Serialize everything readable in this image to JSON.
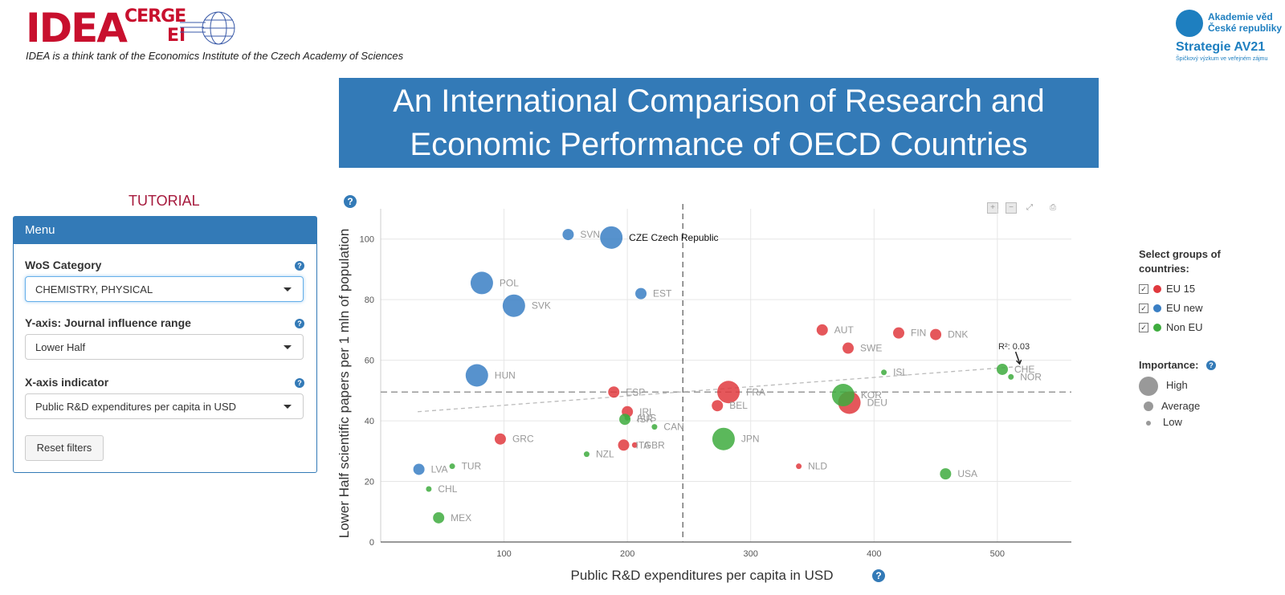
{
  "header": {
    "logo_main": "IDEA",
    "logo_cerge": "CERGE",
    "logo_ei": "EI",
    "tagline": "IDEA is a think tank of the Economics Institute of the Czech Academy of Sciences",
    "partner_line1": "Akademie věd",
    "partner_line2": "České republiky",
    "partner_name": "Strategie AV21",
    "partner_sub": "Špičkový výzkum ve veřejném zájmu"
  },
  "banner": {
    "title": "An International Comparison of Research and Economic Performance of OECD Countries"
  },
  "sidebar": {
    "tutorial_link": "TUTORIAL",
    "menu_title": "Menu",
    "wos_label": "WoS Category",
    "wos_value": "CHEMISTRY, PHYSICAL",
    "y_label": "Y-axis: Journal influence range",
    "y_value": "Lower Half",
    "x_label": "X-axis indicator",
    "x_value": "Public R&D expenditures per capita in USD",
    "reset_label": "Reset filters",
    "help_glyph": "?"
  },
  "toolbar": {
    "zoom_in": "+",
    "zoom_out": "−",
    "reset": "⤢",
    "export": "⎙"
  },
  "legend": {
    "groups_title": "Select groups of countries:",
    "groups": [
      {
        "label": "EU 15",
        "color": "#e0393e",
        "checked": "✓"
      },
      {
        "label": "EU new",
        "color": "#3a7fc4",
        "checked": "✓"
      },
      {
        "label": "Non EU",
        "color": "#3eac3e",
        "checked": "✓"
      }
    ],
    "importance_title": "Importance:",
    "importance": [
      "High",
      "Average",
      "Low"
    ]
  },
  "chart_data": {
    "type": "scatter",
    "xlabel": "Public R&D expenditures per capita in USD",
    "ylabel": "Lower Half scientific papers per 1 mln of population",
    "xlim": [
      0,
      560
    ],
    "ylim": [
      0,
      110
    ],
    "xticks": [
      100,
      200,
      300,
      400,
      500
    ],
    "yticks": [
      0,
      20,
      40,
      60,
      80,
      100
    ],
    "reference_x": 245,
    "reference_y": 49.5,
    "trend": {
      "x1": 30,
      "y1": 43,
      "x2": 520,
      "y2": 58,
      "label": "R²: 0.03"
    },
    "highlight_label": "CZE Czech Republic",
    "colors": {
      "EU 15": "#e0393e",
      "EU new": "#3a7fc4",
      "Non EU": "#3eac3e"
    },
    "points": [
      {
        "code": "SVN",
        "x": 152,
        "y": 101.5,
        "group": "EU new",
        "size": "Average"
      },
      {
        "code": "CZE",
        "x": 187,
        "y": 100.5,
        "group": "EU new",
        "size": "High"
      },
      {
        "code": "POL",
        "x": 82,
        "y": 85.5,
        "group": "EU new",
        "size": "High"
      },
      {
        "code": "SVK",
        "x": 108,
        "y": 78,
        "group": "EU new",
        "size": "High"
      },
      {
        "code": "EST",
        "x": 211,
        "y": 82,
        "group": "EU new",
        "size": "Average"
      },
      {
        "code": "HUN",
        "x": 78,
        "y": 55,
        "group": "EU new",
        "size": "High"
      },
      {
        "code": "LVA",
        "x": 31,
        "y": 24,
        "group": "EU new",
        "size": "Average"
      },
      {
        "code": "AUT",
        "x": 358,
        "y": 70,
        "group": "EU 15",
        "size": "Average"
      },
      {
        "code": "FIN",
        "x": 420,
        "y": 69,
        "group": "EU 15",
        "size": "Average"
      },
      {
        "code": "DNK",
        "x": 450,
        "y": 68.5,
        "group": "EU 15",
        "size": "Average"
      },
      {
        "code": "SWE",
        "x": 379,
        "y": 64,
        "group": "EU 15",
        "size": "Average"
      },
      {
        "code": "ESP",
        "x": 189,
        "y": 49.5,
        "group": "EU 15",
        "size": "Average"
      },
      {
        "code": "FRA",
        "x": 282,
        "y": 49.5,
        "group": "EU 15",
        "size": "High"
      },
      {
        "code": "DEU",
        "x": 380,
        "y": 46,
        "group": "EU 15",
        "size": "High"
      },
      {
        "code": "BEL",
        "x": 273,
        "y": 45,
        "group": "EU 15",
        "size": "Average"
      },
      {
        "code": "IRL",
        "x": 200,
        "y": 43,
        "group": "EU 15",
        "size": "Average"
      },
      {
        "code": "GRC",
        "x": 97,
        "y": 34,
        "group": "EU 15",
        "size": "Average"
      },
      {
        "code": "ITA",
        "x": 197,
        "y": 32,
        "group": "EU 15",
        "size": "Average"
      },
      {
        "code": "GBR",
        "x": 206,
        "y": 32,
        "group": "EU 15",
        "size": "Low"
      },
      {
        "code": "NLD",
        "x": 339,
        "y": 25,
        "group": "EU 15",
        "size": "Low"
      },
      {
        "code": "ISL",
        "x": 408,
        "y": 56,
        "group": "Non EU",
        "size": "Low"
      },
      {
        "code": "CHE",
        "x": 504,
        "y": 57,
        "group": "Non EU",
        "size": "Average"
      },
      {
        "code": "NOR",
        "x": 511,
        "y": 54.5,
        "group": "Non EU",
        "size": "Low"
      },
      {
        "code": "KOR",
        "x": 375,
        "y": 48.5,
        "group": "Non EU",
        "size": "High"
      },
      {
        "code": "AUS",
        "x": 200,
        "y": 41,
        "group": "Non EU",
        "size": "Low"
      },
      {
        "code": "ISR",
        "x": 198,
        "y": 40.5,
        "group": "Non EU",
        "size": "Average"
      },
      {
        "code": "CAN",
        "x": 222,
        "y": 38,
        "group": "Non EU",
        "size": "Low"
      },
      {
        "code": "JPN",
        "x": 278,
        "y": 34,
        "group": "Non EU",
        "size": "High"
      },
      {
        "code": "NZL",
        "x": 167,
        "y": 29,
        "group": "Non EU",
        "size": "Low"
      },
      {
        "code": "TUR",
        "x": 58,
        "y": 25,
        "group": "Non EU",
        "size": "Low"
      },
      {
        "code": "CHL",
        "x": 39,
        "y": 17.5,
        "group": "Non EU",
        "size": "Low"
      },
      {
        "code": "MEX",
        "x": 47,
        "y": 8,
        "group": "Non EU",
        "size": "Average"
      },
      {
        "code": "USA",
        "x": 458,
        "y": 22.5,
        "group": "Non EU",
        "size": "Average"
      }
    ]
  }
}
